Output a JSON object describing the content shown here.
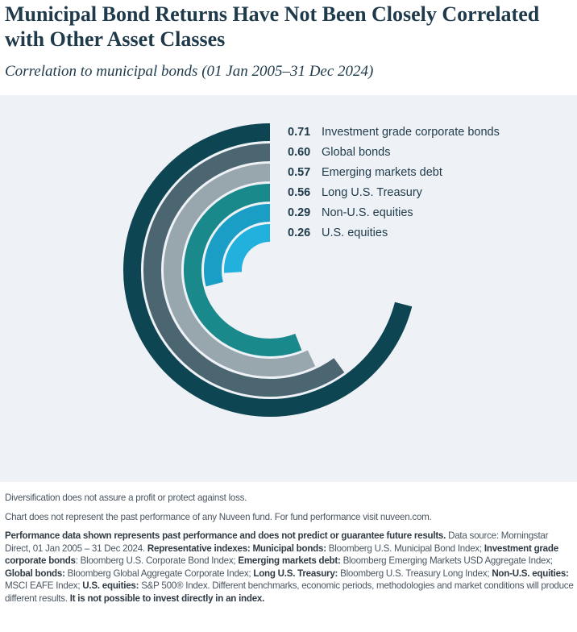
{
  "chart_data": {
    "type": "radial-bar",
    "title": "Municipal Bond Returns Have Not Been Closely Correlated with Other Asset Classes",
    "subtitle": "Correlation to municipal bonds (01 Jan 2005–31 Dec 2024)",
    "categories": [
      "Investment grade corporate bonds",
      "Global bonds",
      "Emerging markets debt",
      "Long U.S. Treasury",
      "Non-U.S. equities",
      "U.S. equities"
    ],
    "values": [
      0.71,
      0.6,
      0.57,
      0.56,
      0.29,
      0.26
    ],
    "value_labels": [
      "0.71",
      "0.60",
      "0.57",
      "0.56",
      "0.29",
      "0.26"
    ],
    "colors": [
      "#0e4552",
      "#4b6571",
      "#98a6ae",
      "#1a898c",
      "#1b9ec6",
      "#21b1dc"
    ]
  },
  "notes": [
    "Diversification does not assure a profit or protect against loss.",
    "Chart does not represent the past performance of any Nuveen fund. For fund performance visit nuveen.com.",
    [
      {
        "text": "Performance data shown represents past performance and does not predict or guarantee future results.",
        "bold": true
      },
      {
        "text": " Data source: Morningstar Direct, 01 Jan 2005 – 31 Dec 2024. ",
        "bold": false
      },
      {
        "text": "Representative indexes: Municipal bonds:",
        "bold": true
      },
      {
        "text": " Bloomberg U.S. Municipal Bond Index; ",
        "bold": false
      },
      {
        "text": "Investment grade corporate bonds",
        "bold": true
      },
      {
        "text": ": Bloomberg U.S. Corporate Bond Index; ",
        "bold": false
      },
      {
        "text": "Emerging markets debt:",
        "bold": true
      },
      {
        "text": " Bloomberg Emerging Markets USD Aggregate Index; ",
        "bold": false
      },
      {
        "text": "Global bonds:",
        "bold": true
      },
      {
        "text": " Bloomberg Global Aggregate Corporate Index; ",
        "bold": false
      },
      {
        "text": "Long U.S. Treasury:",
        "bold": true
      },
      {
        "text": " Bloomberg U.S. Treasury Long Index; ",
        "bold": false
      },
      {
        "text": "Non-U.S. equities:",
        "bold": true
      },
      {
        "text": " MSCI EAFE Index; ",
        "bold": false
      },
      {
        "text": "U.S. equities:",
        "bold": true
      },
      {
        "text": " S&P 500® Index. Different benchmarks, economic periods, methodologies and market conditions will produce different results. ",
        "bold": false
      },
      {
        "text": "It is not possible to invest directly in an index.",
        "bold": true
      }
    ]
  ]
}
